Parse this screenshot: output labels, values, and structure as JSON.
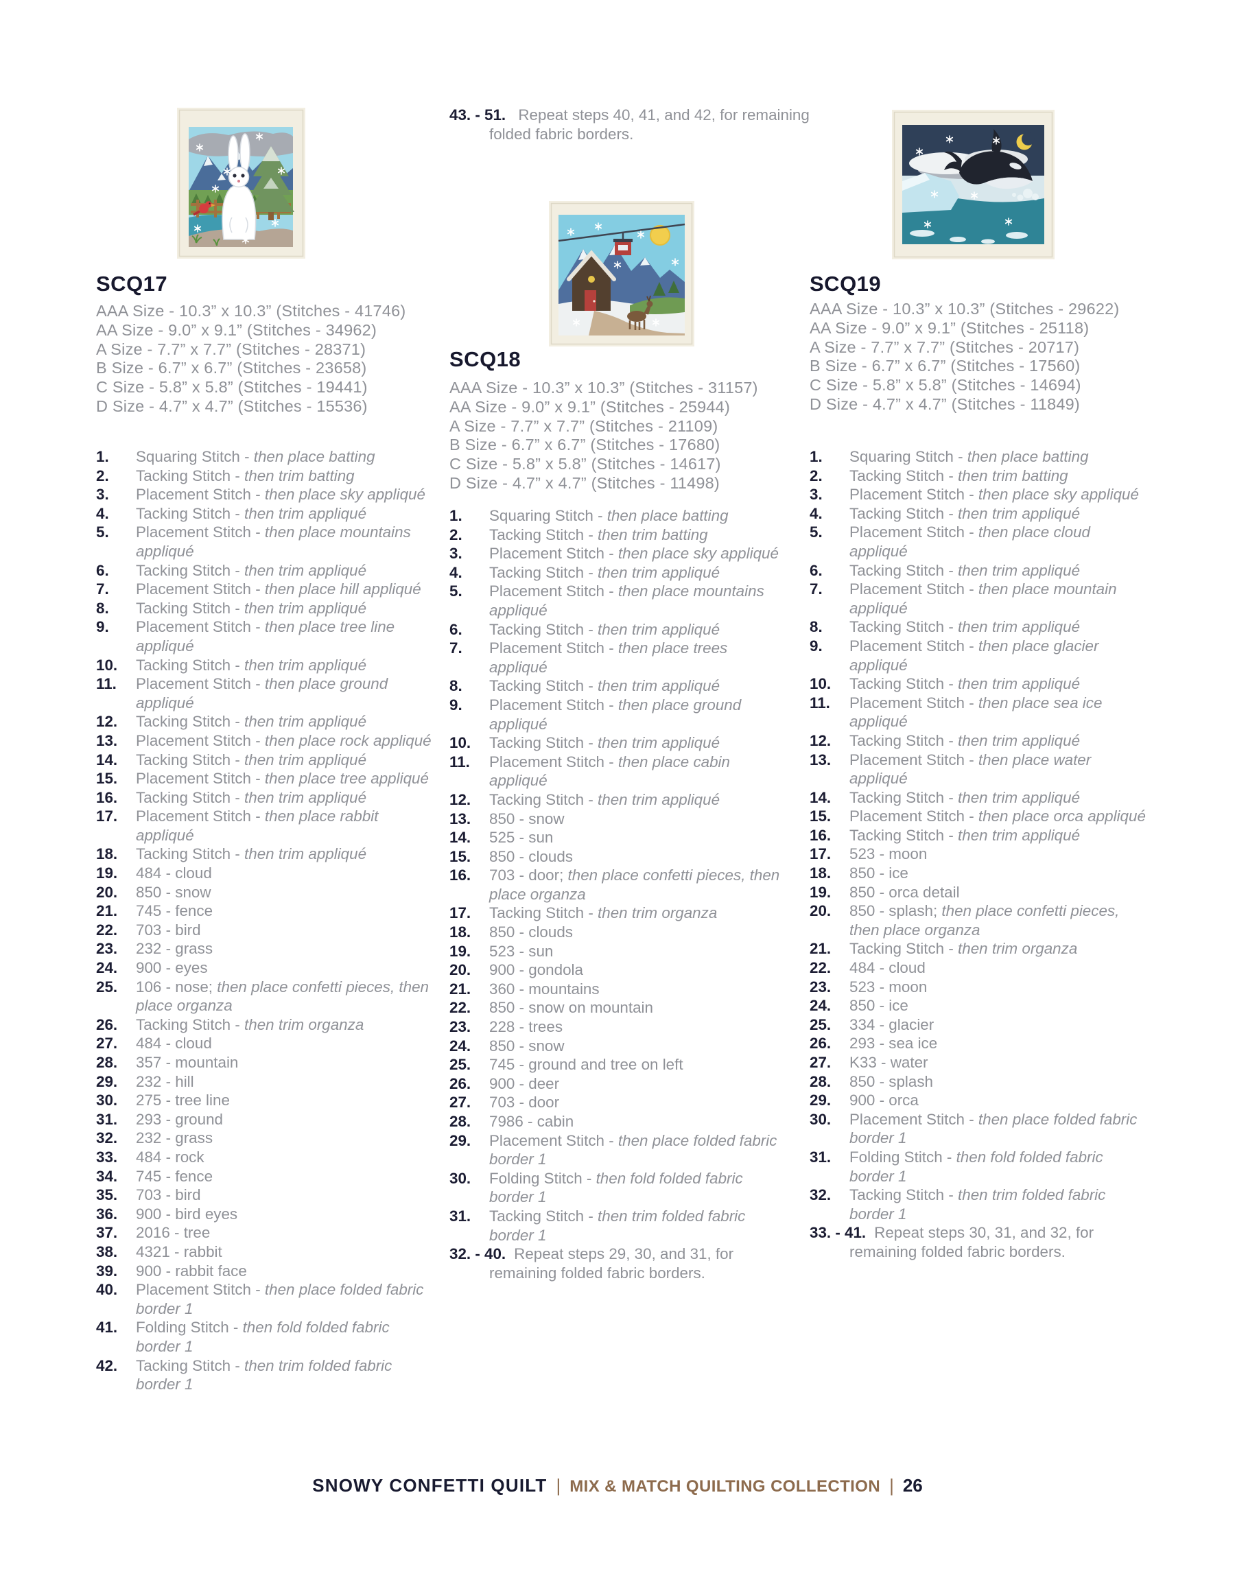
{
  "footer": {
    "title": "SNOWY CONFETTI QUILT",
    "separator": "|",
    "collection": "MIX & MATCH QUILTING COLLECTION",
    "page_number": "26"
  },
  "note": {
    "n": "43. - 51.",
    "t": "Repeat steps 40, 41, and 42, for remaining folded fabric borders."
  },
  "colors": {
    "heading": "#17182d",
    "body_gray": "#8f9197",
    "footer_rust": "#8d6b4d"
  },
  "sections": [
    {
      "title": "SCQ17",
      "sizes": [
        "AAA Size - 10.3” x 10.3” (Stitches - 41746)",
        "AA Size - 9.0” x 9.1” (Stitches - 34962)",
        "A Size - 7.7” x 7.7” (Stitches - 28371)",
        "B Size - 6.7” x 6.7” (Stitches - 23658)",
        "C Size - 5.8” x 5.8” (Stitches - 19441)",
        "D Size - 4.7” x 4.7” (Stitches - 15536)"
      ],
      "steps": [
        {
          "n": "1.",
          "t": "Squaring Stitch - ",
          "i": "then place batting"
        },
        {
          "n": "2.",
          "t": "Tacking Stitch - ",
          "i": "then trim batting"
        },
        {
          "n": "3.",
          "t": "Placement Stitch - ",
          "i": "then place sky appliqué"
        },
        {
          "n": "4.",
          "t": "Tacking Stitch - ",
          "i": "then trim appliqué"
        },
        {
          "n": "5.",
          "t": "Placement Stitch - ",
          "i": "then place mountains appliqué"
        },
        {
          "n": "6.",
          "t": "Tacking Stitch - ",
          "i": "then trim appliqué"
        },
        {
          "n": "7.",
          "t": "Placement Stitch - ",
          "i": "then place hill appliqué"
        },
        {
          "n": "8.",
          "t": "Tacking Stitch - ",
          "i": "then trim appliqué"
        },
        {
          "n": "9.",
          "t": "Placement Stitch - ",
          "i": "then place tree line appliqué"
        },
        {
          "n": "10.",
          "t": "Tacking Stitch - ",
          "i": "then trim appliqué"
        },
        {
          "n": "11.",
          "t": "Placement Stitch - ",
          "i": "then place ground appliqué"
        },
        {
          "n": "12.",
          "t": "Tacking Stitch - ",
          "i": "then trim appliqué"
        },
        {
          "n": "13.",
          "t": "Placement Stitch - ",
          "i": "then place rock appliqué"
        },
        {
          "n": "14.",
          "t": "Tacking Stitch - ",
          "i": "then trim appliqué"
        },
        {
          "n": "15.",
          "t": "Placement Stitch - ",
          "i": "then place tree appliqué"
        },
        {
          "n": "16.",
          "t": "Tacking Stitch - ",
          "i": "then trim appliqué"
        },
        {
          "n": "17.",
          "t": "Placement Stitch - ",
          "i": "then place rabbit appliqué"
        },
        {
          "n": "18.",
          "t": "Tacking Stitch - ",
          "i": "then trim appliqué"
        },
        {
          "n": "19.",
          "t": "484 - cloud"
        },
        {
          "n": "20.",
          "t": "850 - snow"
        },
        {
          "n": "21.",
          "t": "745 - fence"
        },
        {
          "n": "22.",
          "t": "703 - bird"
        },
        {
          "n": "23.",
          "t": "232 - grass"
        },
        {
          "n": "24.",
          "t": "900 - eyes"
        },
        {
          "n": "25.",
          "t": "106 - nose; ",
          "i": "then place confetti pieces, then place organza"
        },
        {
          "n": "26.",
          "t": "Tacking Stitch - ",
          "i": "then trim organza"
        },
        {
          "n": "27.",
          "t": "484 - cloud"
        },
        {
          "n": "28.",
          "t": "357 - mountain"
        },
        {
          "n": "29.",
          "t": "232 - hill"
        },
        {
          "n": "30.",
          "t": "275 - tree line"
        },
        {
          "n": "31.",
          "t": "293 - ground"
        },
        {
          "n": "32.",
          "t": "232 - grass"
        },
        {
          "n": "33.",
          "t": "484 - rock"
        },
        {
          "n": "34.",
          "t": "745 - fence"
        },
        {
          "n": "35.",
          "t": "703 - bird"
        },
        {
          "n": "36.",
          "t": "900 - bird eyes"
        },
        {
          "n": "37.",
          "t": "2016 - tree"
        },
        {
          "n": "38.",
          "t": "4321 - rabbit"
        },
        {
          "n": "39.",
          "t": "900 - rabbit face"
        },
        {
          "n": "40.",
          "t": "Placement Stitch - ",
          "i": "then place folded fabric border 1"
        },
        {
          "n": "41.",
          "t": "Folding Stitch - ",
          "i": "then fold folded fabric border 1"
        },
        {
          "n": "42.",
          "t": "Tacking Stitch - ",
          "i": "then trim folded fabric border 1"
        }
      ]
    },
    {
      "title": "SCQ18",
      "sizes": [
        "AAA Size - 10.3” x 10.3” (Stitches - 31157)",
        "AA Size - 9.0” x 9.1” (Stitches - 25944)",
        "A Size - 7.7” x 7.7” (Stitches - 21109)",
        "B Size - 6.7” x 6.7” (Stitches - 17680)",
        "C Size - 5.8” x 5.8” (Stitches - 14617)",
        "D Size - 4.7” x 4.7” (Stitches - 11498)"
      ],
      "steps": [
        {
          "n": "1.",
          "t": "Squaring Stitch - ",
          "i": "then place batting"
        },
        {
          "n": "2.",
          "t": "Tacking Stitch - ",
          "i": "then trim batting"
        },
        {
          "n": "3.",
          "t": "Placement Stitch - ",
          "i": "then place sky appliqué"
        },
        {
          "n": "4.",
          "t": "Tacking Stitch - ",
          "i": "then trim appliqué"
        },
        {
          "n": "5.",
          "t": "Placement Stitch - ",
          "i": "then place mountains appliqué"
        },
        {
          "n": "6.",
          "t": "Tacking Stitch - ",
          "i": "then trim appliqué"
        },
        {
          "n": "7.",
          "t": "Placement Stitch - ",
          "i": "then place trees appliqué"
        },
        {
          "n": "8.",
          "t": "Tacking Stitch - ",
          "i": "then trim appliqué"
        },
        {
          "n": "9.",
          "t": "Placement Stitch - ",
          "i": "then place ground appliqué"
        },
        {
          "n": "10.",
          "t": "Tacking Stitch - ",
          "i": "then trim appliqué"
        },
        {
          "n": "11.",
          "t": "Placement Stitch - ",
          "i": "then place cabin appliqué"
        },
        {
          "n": "12.",
          "t": "Tacking Stitch - ",
          "i": "then trim appliqué"
        },
        {
          "n": "13.",
          "t": "850 - snow"
        },
        {
          "n": "14.",
          "t": "525 - sun"
        },
        {
          "n": "15.",
          "t": "850 - clouds"
        },
        {
          "n": "16.",
          "t": "703 - door; ",
          "i": "then place confetti pieces, then place organza"
        },
        {
          "n": "17.",
          "t": "Tacking Stitch - ",
          "i": "then trim organza"
        },
        {
          "n": "18.",
          "t": "850 - clouds"
        },
        {
          "n": "19.",
          "t": "523 - sun"
        },
        {
          "n": "20.",
          "t": "900 - gondola"
        },
        {
          "n": "21.",
          "t": "360 - mountains"
        },
        {
          "n": "22.",
          "t": "850 - snow on mountain"
        },
        {
          "n": "23.",
          "t": "228 - trees"
        },
        {
          "n": "24.",
          "t": "850 - snow"
        },
        {
          "n": "25.",
          "t": "745 - ground and tree on left"
        },
        {
          "n": "26.",
          "t": "900 - deer"
        },
        {
          "n": "27.",
          "t": "703 - door"
        },
        {
          "n": "28.",
          "t": "7986 - cabin"
        },
        {
          "n": "29.",
          "t": "Placement Stitch - ",
          "i": "then place folded fabric border 1"
        },
        {
          "n": "30.",
          "t": "Folding Stitch - ",
          "i": "then fold folded fabric border 1"
        },
        {
          "n": "31.",
          "t": "Tacking Stitch - ",
          "i": "then trim folded fabric border 1"
        },
        {
          "n": "32. - 40.",
          "t": "Repeat steps 29, 30, and 31, for remaining folded fabric borders.",
          "repeat": true
        }
      ]
    },
    {
      "title": "SCQ19",
      "sizes": [
        "AAA Size - 10.3” x 10.3” (Stitches - 29622)",
        "AA Size - 9.0” x 9.1” (Stitches - 25118)",
        "A Size - 7.7” x 7.7” (Stitches - 20717)",
        "B Size - 6.7” x 6.7” (Stitches - 17560)",
        "C Size - 5.8” x 5.8” (Stitches - 14694)",
        "D Size - 4.7” x 4.7” (Stitches - 11849)"
      ],
      "steps": [
        {
          "n": "1.",
          "t": "Squaring Stitch - ",
          "i": "then place batting"
        },
        {
          "n": "2.",
          "t": "Tacking Stitch - ",
          "i": "then trim batting"
        },
        {
          "n": "3.",
          "t": "Placement Stitch - ",
          "i": "then place sky appliqué"
        },
        {
          "n": "4.",
          "t": "Tacking Stitch - ",
          "i": "then trim appliqué"
        },
        {
          "n": "5.",
          "t": "Placement Stitch - ",
          "i": "then place cloud appliqué"
        },
        {
          "n": "6.",
          "t": "Tacking Stitch - ",
          "i": "then trim appliqué"
        },
        {
          "n": "7.",
          "t": "Placement Stitch - ",
          "i": "then place mountain appliqué"
        },
        {
          "n": "8.",
          "t": "Tacking Stitch - ",
          "i": "then trim appliqué"
        },
        {
          "n": "9.",
          "t": "Placement Stitch - ",
          "i": "then place glacier appliqué"
        },
        {
          "n": "10.",
          "t": "Tacking Stitch - ",
          "i": "then trim appliqué"
        },
        {
          "n": "11.",
          "t": "Placement Stitch - ",
          "i": "then place sea ice appliqué"
        },
        {
          "n": "12.",
          "t": "Tacking Stitch - ",
          "i": "then trim appliqué"
        },
        {
          "n": "13.",
          "t": "Placement Stitch - ",
          "i": "then place water appliqué"
        },
        {
          "n": "14.",
          "t": "Tacking Stitch - ",
          "i": "then trim appliqué"
        },
        {
          "n": "15.",
          "t": "Placement Stitch - ",
          "i": "then place orca appliqué"
        },
        {
          "n": "16.",
          "t": "Tacking Stitch - ",
          "i": "then trim appliqué"
        },
        {
          "n": "17.",
          "t": "523 - moon"
        },
        {
          "n": "18.",
          "t": "850 - ice"
        },
        {
          "n": "19.",
          "t": "850 - orca detail"
        },
        {
          "n": "20.",
          "t": "850 - splash; ",
          "i": "then place confetti pieces, then place organza"
        },
        {
          "n": "21.",
          "t": "Tacking Stitch - ",
          "i": "then trim organza"
        },
        {
          "n": "22.",
          "t": "484 - cloud"
        },
        {
          "n": "23.",
          "t": "523 - moon"
        },
        {
          "n": "24.",
          "t": "850 - ice"
        },
        {
          "n": "25.",
          "t": "334 - glacier"
        },
        {
          "n": "26.",
          "t": "293 - sea ice"
        },
        {
          "n": "27.",
          "t": "K33 - water"
        },
        {
          "n": "28.",
          "t": "850 - splash"
        },
        {
          "n": "29.",
          "t": "900 - orca"
        },
        {
          "n": "30.",
          "t": "Placement Stitch - ",
          "i": "then place folded fabric border 1"
        },
        {
          "n": "31.",
          "t": "Folding Stitch - ",
          "i": "then fold folded fabric border 1"
        },
        {
          "n": "32.",
          "t": "Tacking Stitch - ",
          "i": "then trim folded fabric border 1"
        },
        {
          "n": "33. - 41.",
          "t": "Repeat steps 30, 31, and 32, for remaining folded fabric borders.",
          "repeat": true
        }
      ]
    }
  ]
}
